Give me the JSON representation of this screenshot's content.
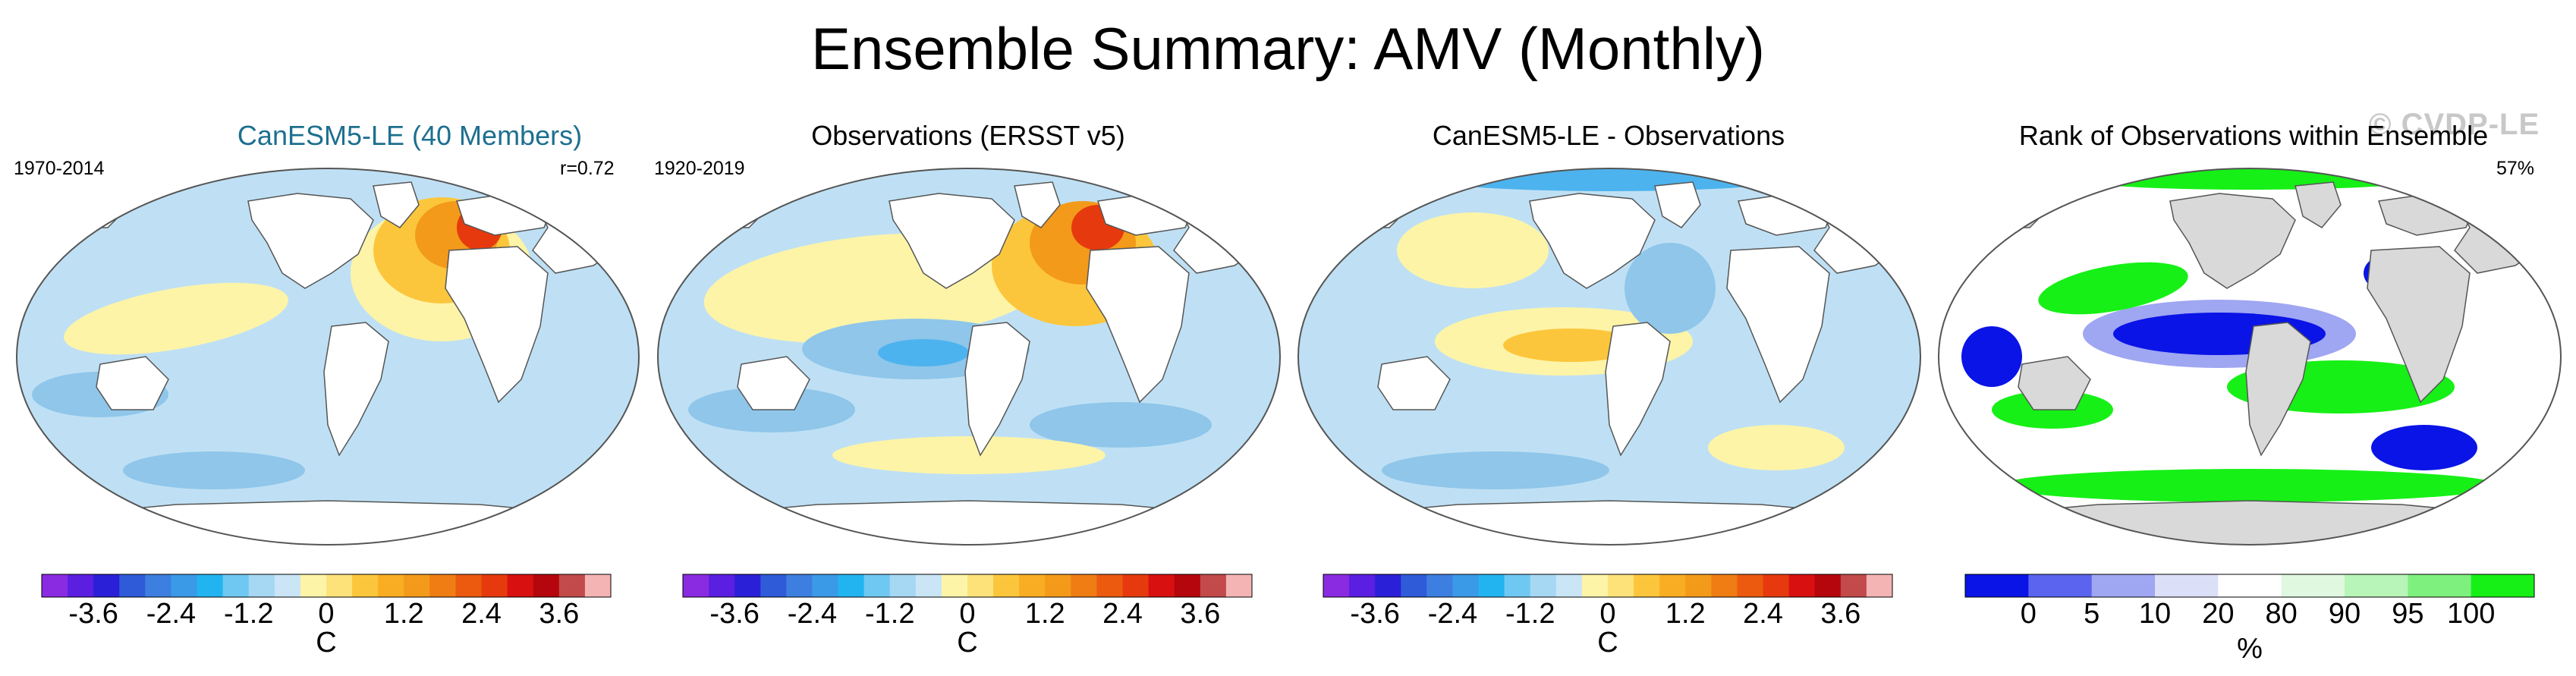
{
  "title": "Ensemble Summary: AMV (Monthly)",
  "watermark": "© CVDP-LE",
  "colors": {
    "land": "#ffffff",
    "coast": "#555555",
    "rank_land": "#d9d9d9",
    "pos_mild": "#fdf4a8",
    "pos_mid": "#fcc63c",
    "pos_strong": "#f39a1a",
    "pos_max": "#e63a0e",
    "neg_mild": "#bfe0f4",
    "neg_mid": "#8fc6ea",
    "neg_strong": "#4db3ee",
    "rank_low": "#0a14e6",
    "rank_lowmid": "#9fa6f2",
    "rank_high": "#16f016",
    "rank_highmid": "#b8f5b8"
  },
  "panels": [
    {
      "title": "CanESM5-LE (40 Members)",
      "left_label": "1970-2014",
      "right_label": "r=0.72"
    },
    {
      "title": "Observations (ERSST v5)",
      "left_label": "1920-2019",
      "right_label": ""
    },
    {
      "title": "CanESM5-LE - Observations",
      "left_label": "",
      "right_label": ""
    },
    {
      "title": "Rank of Observations within Ensemble",
      "left_label": "",
      "right_label": "57%"
    }
  ],
  "chart_data": {
    "type": "heatmap",
    "temperature_colorbar": {
      "unit": "C",
      "levels": [
        -4.2,
        -3.9,
        -3.6,
        -3.3,
        -3.0,
        -2.7,
        -2.4,
        -2.1,
        -1.8,
        -1.5,
        -1.2,
        -0.9,
        -0.6,
        -0.3,
        0,
        0.3,
        0.6,
        0.9,
        1.2,
        1.5,
        1.8,
        2.1,
        2.4,
        2.7,
        3.0,
        3.3,
        3.6,
        3.9,
        4.2
      ],
      "tick_labels": [
        "-3.6",
        "-2.4",
        "-1.2",
        "0",
        "1.2",
        "2.4",
        "3.6"
      ],
      "tick_values": [
        -3.6,
        -2.4,
        -1.2,
        0,
        1.2,
        2.4,
        3.6
      ],
      "colors": [
        "#8a2be2",
        "#5a1fe0",
        "#2a20d8",
        "#2f5bd8",
        "#3d7fe0",
        "#3a9ae8",
        "#22b4f0",
        "#6fc8f2",
        "#a6d7f3",
        "#c9e5f6",
        "#fdf4a8",
        "#fde27a",
        "#fcc63c",
        "#f8ad22",
        "#f39a1a",
        "#ef7d14",
        "#ec5a10",
        "#e63a0e",
        "#d81010",
        "#b4060c",
        "#c24a4a",
        "#f4b4b4"
      ]
    },
    "rank_colorbar": {
      "unit": "%",
      "tick_labels": [
        "0",
        "5",
        "10",
        "20",
        "80",
        "90",
        "95",
        "100"
      ],
      "tick_values": [
        0,
        5,
        10,
        20,
        80,
        90,
        95,
        100
      ],
      "colors": [
        "#0a14e6",
        "#5a64ee",
        "#9fa6f2",
        "#dcdff8",
        "#ffffff",
        "#dff8df",
        "#b8f5b8",
        "#7ef07e",
        "#16f016"
      ]
    }
  }
}
